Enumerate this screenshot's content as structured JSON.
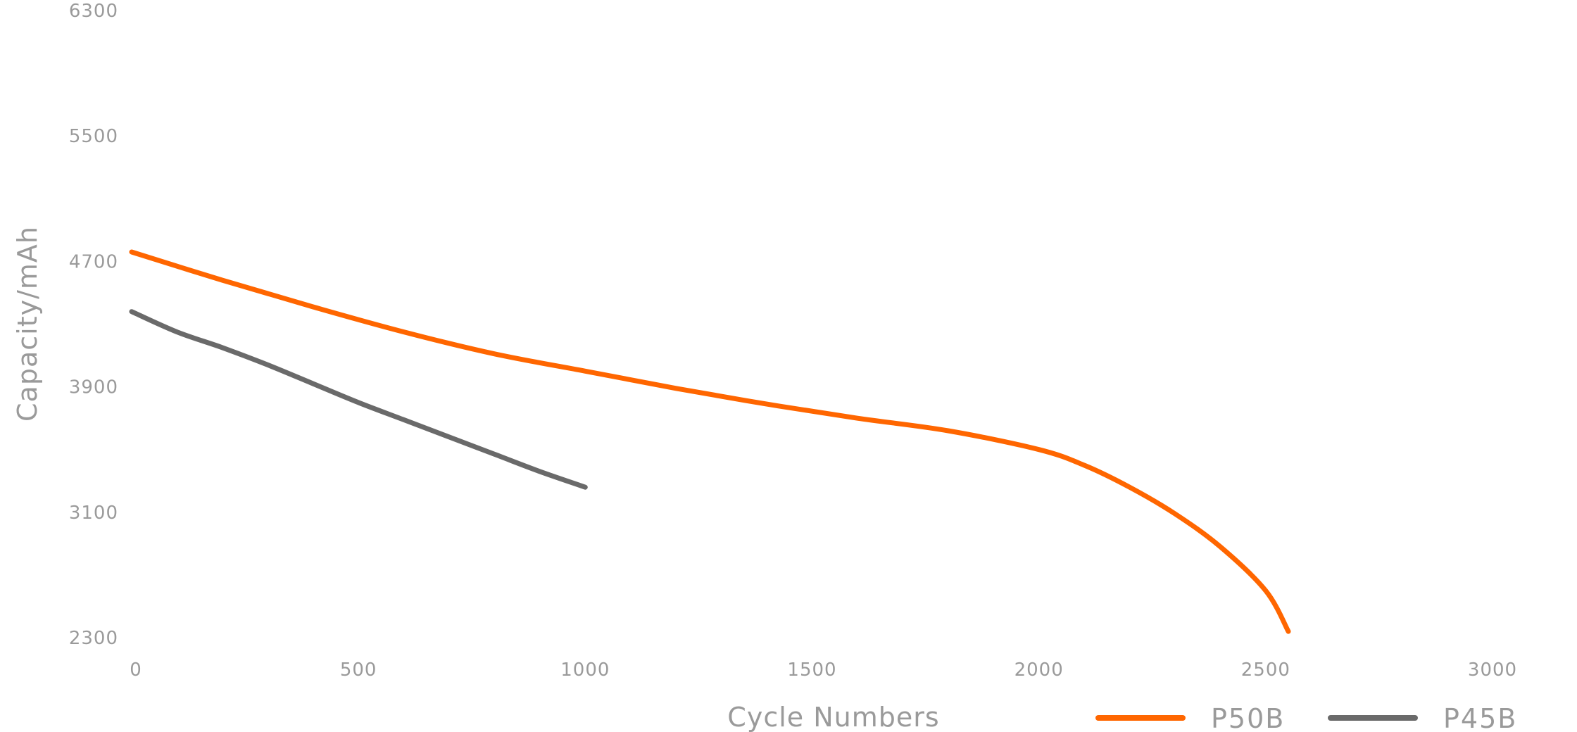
{
  "chart_data": {
    "type": "line",
    "title": "",
    "xlabel": "Cycle Numbers",
    "ylabel": "Capacity/mAh",
    "xlim": [
      0,
      3000
    ],
    "ylim": [
      2300,
      6300
    ],
    "x_ticks": [
      "0",
      "500",
      "1000",
      "1500",
      "2000",
      "2500",
      "3000"
    ],
    "y_ticks": [
      "6300",
      "5500",
      "4700",
      "3900",
      "3100",
      "2300"
    ],
    "grid": false,
    "legend_position": "bottom-right",
    "series": [
      {
        "name": "P50B",
        "color": "#ff6600",
        "x": [
          0,
          200,
          400,
          600,
          800,
          1000,
          1200,
          1400,
          1600,
          1800,
          2000,
          2100,
          2200,
          2300,
          2400,
          2500,
          2550
        ],
        "y": [
          4760,
          4580,
          4410,
          4250,
          4110,
          4000,
          3890,
          3790,
          3700,
          3620,
          3500,
          3400,
          3260,
          3090,
          2880,
          2600,
          2340
        ]
      },
      {
        "name": "P45B",
        "color": "#6a6a6a",
        "x": [
          0,
          100,
          200,
          300,
          400,
          500,
          600,
          700,
          800,
          900,
          1000
        ],
        "y": [
          4380,
          4250,
          4150,
          4040,
          3920,
          3800,
          3690,
          3580,
          3470,
          3360,
          3260
        ]
      }
    ]
  }
}
